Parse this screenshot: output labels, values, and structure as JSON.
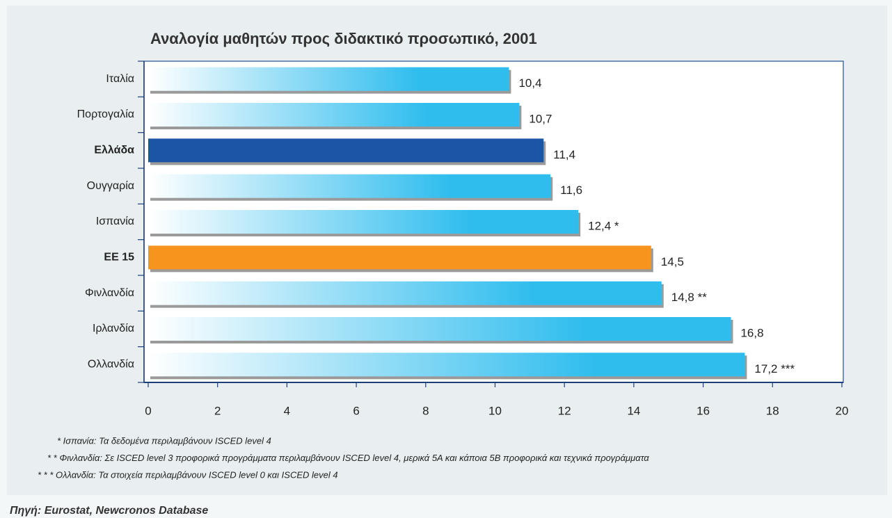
{
  "chart_data": {
    "type": "barh",
    "title": "Αναλογία μαθητών προς διδακτικό προσωπικό, 2001",
    "categories": [
      "Ιταλία",
      "Πορτογαλία",
      "Ελλάδα",
      "Ουγγαρία",
      "Ισπανία",
      "EE 15",
      "Φινλανδία",
      "Ιρλανδία",
      "Ολλανδία"
    ],
    "values": [
      10.4,
      10.7,
      11.4,
      11.6,
      12.4,
      14.5,
      14.8,
      16.8,
      17.2
    ],
    "value_labels": [
      "10,4",
      "10,7",
      "11,4",
      "11,6",
      "12,4 *",
      "14,5",
      "14,8 **",
      "16,8",
      "17,2 ***"
    ],
    "colors": [
      "#2fbdee",
      "#2fbdee",
      "#1b55a3",
      "#2fbdee",
      "#2fbdee",
      "#f7941d",
      "#2fbdee",
      "#2fbdee",
      "#2fbdee"
    ],
    "gradient_from": [
      "#ffffff",
      "#ffffff",
      "#1b55a3",
      "#ffffff",
      "#ffffff",
      "#f7941d",
      "#ffffff",
      "#ffffff",
      "#ffffff"
    ],
    "xlim": [
      0,
      20
    ],
    "xticks": [
      0,
      2,
      4,
      6,
      8,
      10,
      12,
      14,
      16,
      18,
      20
    ],
    "footnotes": [
      "* Ισπανία: Τα δεδομένα περιλαμβάνουν ISCED level 4",
      "* * Φινλανδία: Σε ISCED level 3 προφορικά προγράμματα περιλαμβάνουν ISCED level 4, μερικά 5A και κάποια 5B προφορικά και τεχνικά προγράμματα",
      "* * * Ολλανδία: Τα στοιχεία περιλαμβάνουν ISCED level 0 και ISCED level 4"
    ],
    "source": "Πηγή: Eurostat, Newcronos Database"
  }
}
